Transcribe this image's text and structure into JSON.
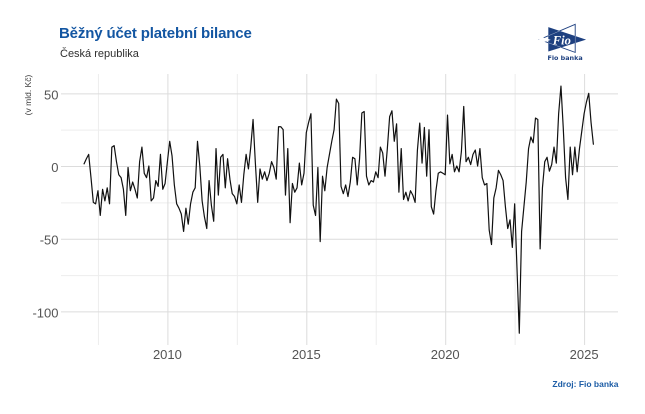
{
  "header": {
    "title": "Běžný účet platební bilance",
    "subtitle": "Česká republika"
  },
  "logo": {
    "name": "Fio banka logo",
    "text": "Fio",
    "caption": "Fio banka",
    "color": "#1e4080"
  },
  "source_note": "Zdroj: Fio banka",
  "colors": {
    "title_blue": "#1356a2",
    "source_blue": "#1d5da6",
    "logo_navy": "#1e4080",
    "axis_text": "#4d4d4d",
    "grid_major": "#dcdcdc",
    "grid_minor": "#ededed",
    "line": "#000000",
    "background": "#ffffff"
  },
  "chart_data": {
    "type": "line",
    "title": "Běžný účet platební bilance",
    "subtitle": "Česká republika",
    "ylabel": "(v mld. Kč)",
    "xlabel": "",
    "legend": "none",
    "grid": "on",
    "line_color": "#000000",
    "xlim": [
      2006.17,
      2026.22
    ],
    "ylim": [
      -123.1,
      63.3
    ],
    "x_ticks": [
      {
        "label": "2010",
        "value": 2010
      },
      {
        "label": "2015",
        "value": 2015
      },
      {
        "label": "2020",
        "value": 2020
      },
      {
        "label": "2025",
        "value": 2025
      }
    ],
    "x_minor_ticks": [
      2007.5,
      2012.5,
      2017.5,
      2022.5
    ],
    "y_ticks": [
      {
        "label": "50",
        "value": 50
      },
      {
        "label": "0",
        "value": 0
      },
      {
        "label": "-50",
        "value": -50
      },
      {
        "label": "-100",
        "value": -100
      }
    ],
    "y_minor_ticks": [
      25,
      -25,
      -75
    ],
    "series_name": "Běžný účet platební bilance (v mld. Kč)",
    "start_year": 2007,
    "start_month": 1,
    "frequency": "monthly",
    "values": [
      1.5,
      5,
      8,
      -8,
      -25,
      -26,
      -17,
      -34,
      -16,
      -24,
      -15,
      -26,
      13,
      14,
      3,
      -6,
      -8,
      -16,
      -34,
      -1,
      -17,
      -11,
      -16,
      -22,
      3,
      13,
      -5,
      -8,
      0,
      -24,
      -22,
      -10,
      -14,
      8,
      -16,
      -12,
      3,
      17,
      7,
      -13,
      -26,
      -29,
      -33,
      -45,
      -29,
      -40,
      -26,
      -18,
      -15,
      17,
      0,
      -24,
      -35,
      -43,
      -10,
      -27,
      -38,
      12,
      -20,
      6,
      8,
      -15,
      5,
      -9,
      -19,
      -21,
      -26,
      -13,
      -25,
      -6,
      8,
      -2,
      13,
      32,
      2,
      -25,
      -2,
      -9,
      -4,
      -10,
      -5,
      3,
      -1,
      -9,
      27,
      27,
      25,
      -20,
      12,
      -39,
      -12,
      -18,
      -15,
      2,
      -13,
      -5,
      23,
      30,
      36,
      -27,
      -34,
      -1,
      -52,
      -7,
      -17,
      -1,
      8,
      17,
      25,
      46,
      43,
      -14,
      -19,
      -13,
      -21,
      -11,
      6,
      5,
      -13,
      5,
      36.5,
      37.5,
      -7,
      -13,
      -10,
      -11,
      -4,
      -8,
      13,
      9,
      -7,
      12,
      34,
      38,
      17,
      29,
      -18,
      12,
      -23,
      -18,
      -24,
      -17,
      -20,
      -25,
      11,
      29.5,
      2,
      26.5,
      -7,
      25,
      -28,
      -33,
      -17,
      -5,
      -4,
      -5,
      -6,
      35,
      1.5,
      8,
      -4,
      0,
      -4,
      10,
      41,
      3,
      6,
      1,
      8,
      11,
      0,
      12,
      -8,
      -13,
      -12,
      -44,
      -54,
      -22,
      -15,
      -3,
      -6,
      -10,
      -28,
      -43,
      -37,
      -56,
      -26,
      -70,
      -115,
      -45,
      -28,
      -11,
      12,
      20,
      16,
      33,
      32,
      -57,
      -15,
      3,
      6,
      -3.5,
      1,
      13,
      2,
      36,
      55,
      26,
      -8,
      -23,
      13,
      -6,
      13,
      -4,
      12,
      24,
      36,
      44,
      50,
      30,
      15
    ]
  }
}
